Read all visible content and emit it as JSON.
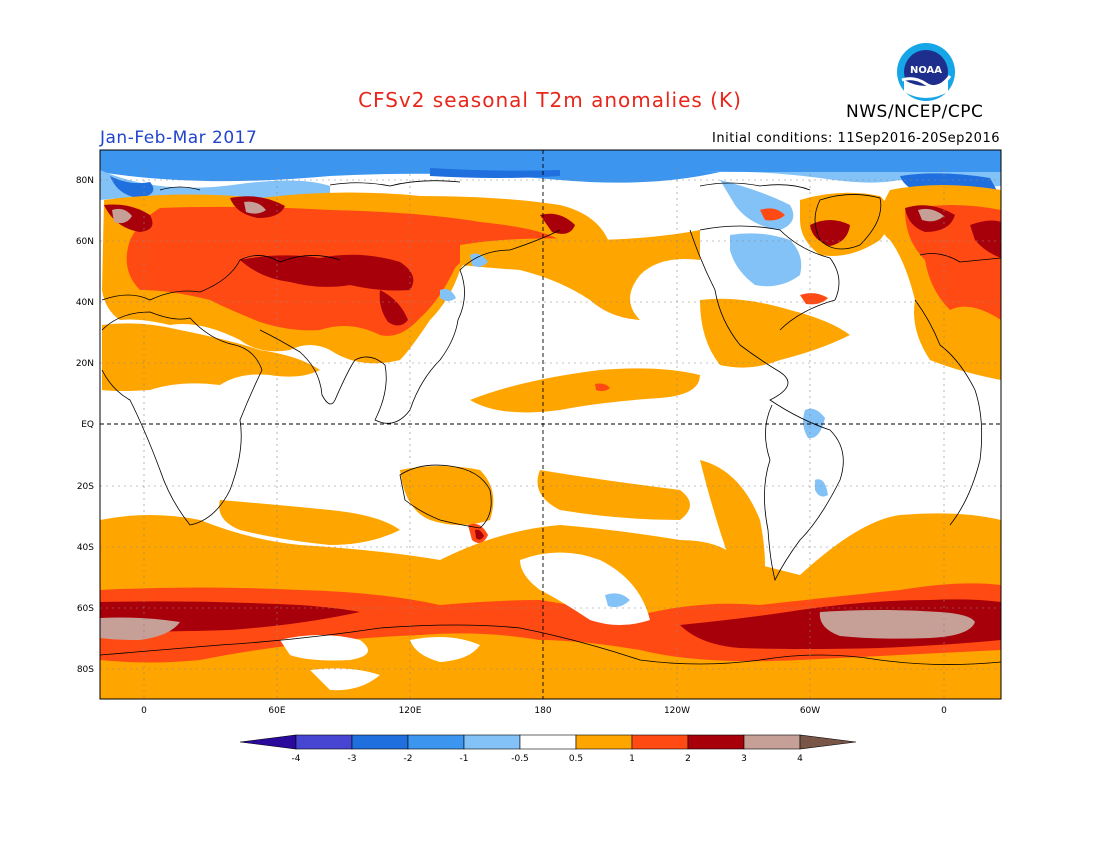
{
  "header": {
    "title": "CFSv2 seasonal T2m anomalies (K)",
    "period": "Jan-Feb-Mar 2017",
    "initial_conditions": "Initial conditions: 11Sep2016-20Sep2016",
    "agency": "NWS/NCEP/CPC",
    "logo_text": "NOAA"
  },
  "map": {
    "lat_labels": [
      "80N",
      "60N",
      "40N",
      "20N",
      "EQ",
      "20S",
      "40S",
      "60S",
      "80S"
    ],
    "lon_labels": [
      "0",
      "60E",
      "120E",
      "180",
      "120W",
      "60W",
      "0"
    ]
  },
  "colorbar": {
    "tick_labels": [
      "-4",
      "-3",
      "-2",
      "-1",
      "-0.5",
      "0.5",
      "1",
      "2",
      "3",
      "4"
    ],
    "colors": [
      "#2a0a9c",
      "#4646d2",
      "#1f6fde",
      "#3c96f0",
      "#82c2f7",
      "#ffffff",
      "#ffa500",
      "#ff4a14",
      "#a8000a",
      "#c6a096",
      "#795548"
    ]
  },
  "legend_colors": {
    "cold_strong": "#1f6fde",
    "cold_mid": "#3c96f0",
    "cold_light": "#82c2f7",
    "warm_light": "#ffa500",
    "warm_mid": "#ff4a14",
    "warm_strong": "#a8000a",
    "warm_extreme": "#c6a096"
  }
}
